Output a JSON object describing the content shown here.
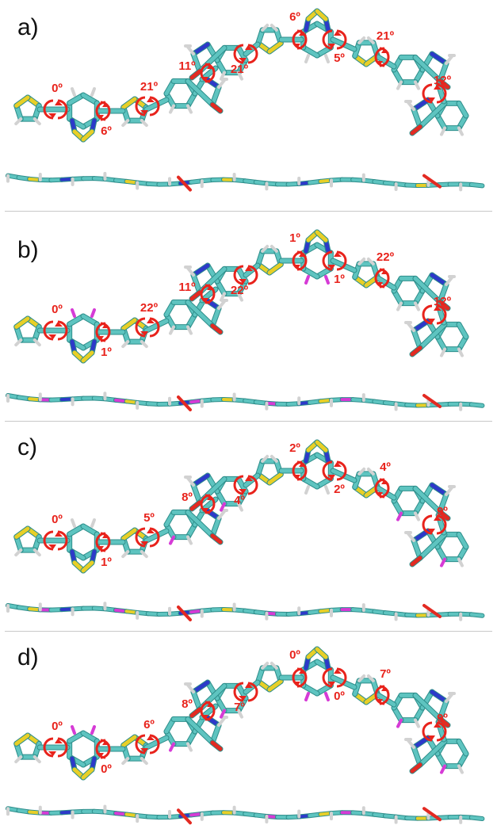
{
  "colors": {
    "carbon": "#5ec4c0",
    "carbon_dark": "#2e8e8b",
    "sulfur": "#e8cf27",
    "nitrogen": "#2d39c9",
    "oxygen": "#e32a22",
    "hydrogen": "#d2d2d2",
    "fluorine": "#d63bd6",
    "arrow": "#e8231c",
    "divider": "#c8c8c8"
  },
  "panels": [
    {
      "label": "a)",
      "angles": [
        "0º",
        "6º",
        "21º",
        "11º",
        "21º",
        "6º",
        "5º",
        "21º",
        "12º"
      ],
      "fluorinated": []
    },
    {
      "label": "b)",
      "angles": [
        "0º",
        "1º",
        "22º",
        "11º",
        "22º",
        "1º",
        "1º",
        "22º",
        "12º"
      ],
      "fluorinated": [
        "core"
      ]
    },
    {
      "label": "c)",
      "angles": [
        "0º",
        "1º",
        "5º",
        "8º",
        "4º",
        "2º",
        "2º",
        "4º",
        "9º"
      ],
      "fluorinated": [
        "indol"
      ]
    },
    {
      "label": "d)",
      "angles": [
        "0º",
        "0º",
        "6º",
        "8º",
        "7º",
        "0º",
        "0º",
        "7º",
        "9º"
      ],
      "fluorinated": [
        "core",
        "indol"
      ]
    }
  ]
}
